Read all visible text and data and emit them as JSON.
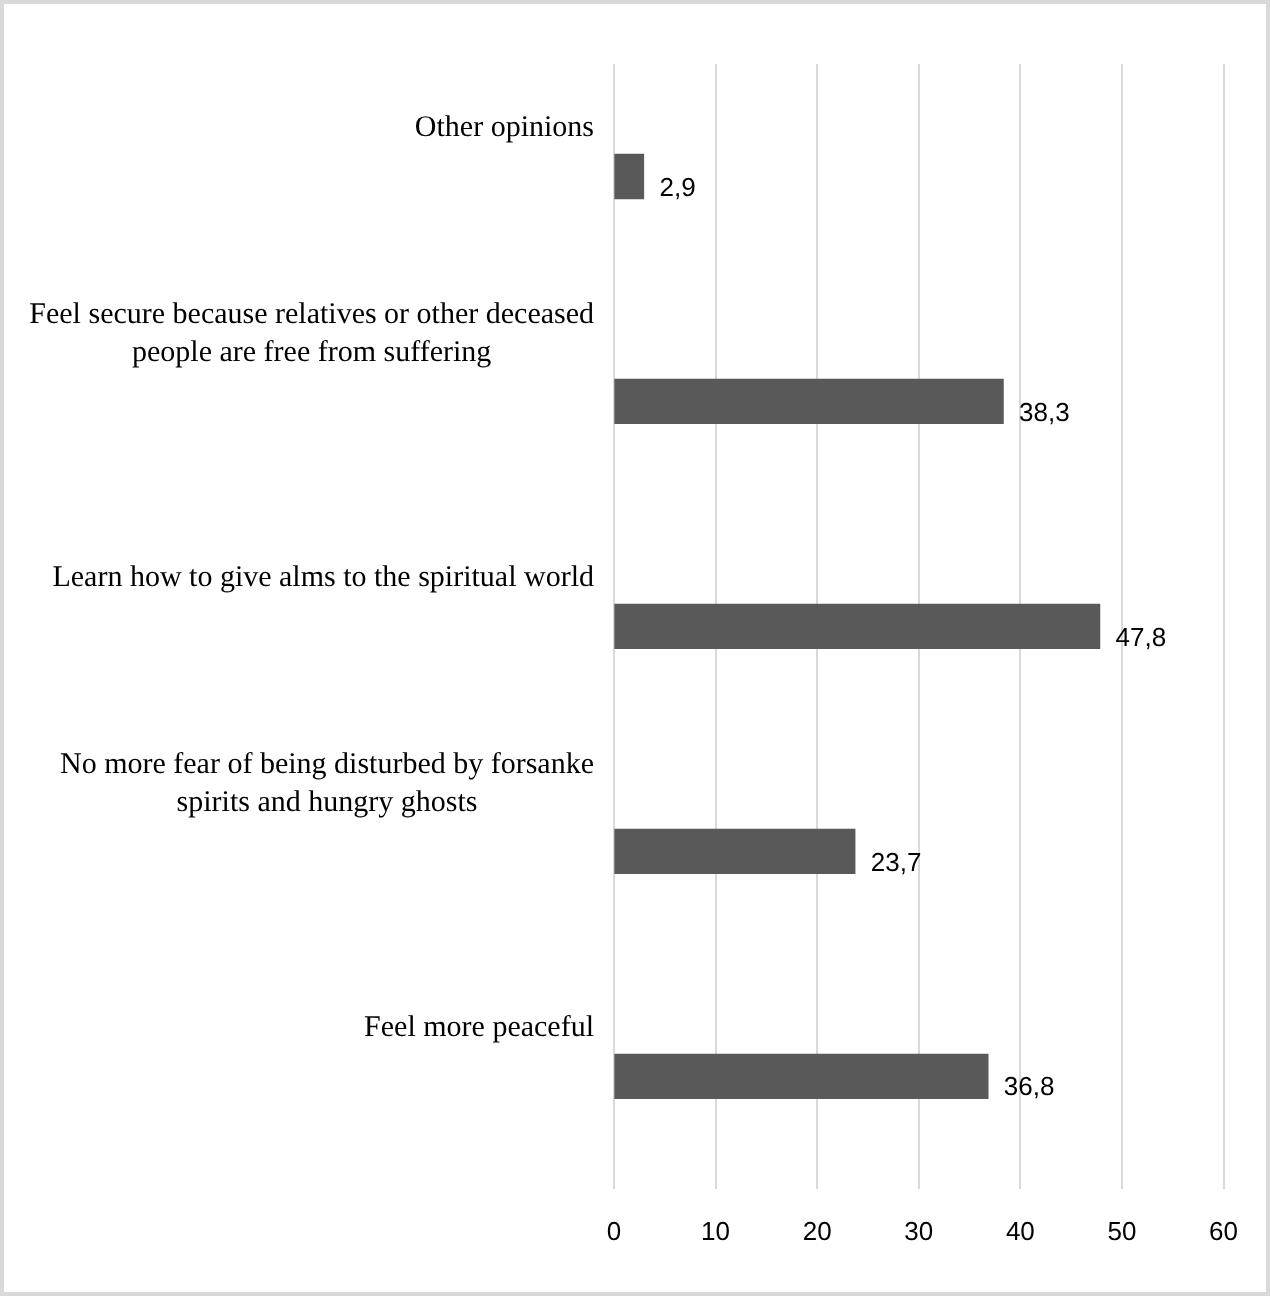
{
  "chart_data": {
    "type": "bar",
    "orientation": "horizontal",
    "categories": [
      "Other opinions",
      "Feel secure because relatives or other deceased people are free from suffering",
      "Learn how to give alms to the spiritual world",
      "No more fear of being disturbed by forsanke spirits and hungry ghosts",
      "Feel more peaceful"
    ],
    "values": [
      2.9,
      38.3,
      47.8,
      23.7,
      36.8
    ],
    "value_labels": [
      "2,9",
      "38,3",
      "47,8",
      "23,7",
      "36,8"
    ],
    "color": "#595959",
    "xlim": [
      0,
      60
    ],
    "xticks": [
      0,
      10,
      20,
      30,
      40,
      50,
      60
    ],
    "grid": "x",
    "legend": false
  }
}
